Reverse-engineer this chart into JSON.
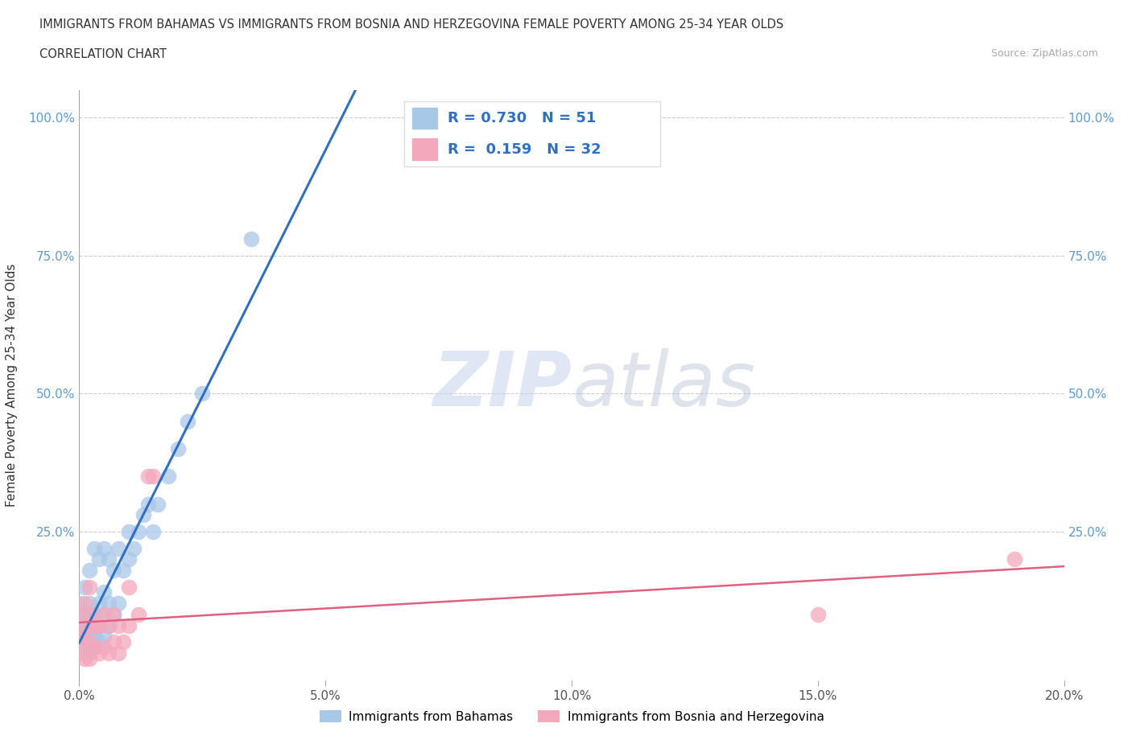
{
  "title_line1": "IMMIGRANTS FROM BAHAMAS VS IMMIGRANTS FROM BOSNIA AND HERZEGOVINA FEMALE POVERTY AMONG 25-34 YEAR OLDS",
  "title_line2": "CORRELATION CHART",
  "source_text": "Source: ZipAtlas.com",
  "ylabel": "Female Poverty Among 25-34 Year Olds",
  "xlim": [
    0.0,
    0.2
  ],
  "ylim": [
    -0.02,
    1.05
  ],
  "xticks": [
    0.0,
    0.05,
    0.1,
    0.15,
    0.2
  ],
  "xticklabels": [
    "0.0%",
    "5.0%",
    "10.0%",
    "15.0%",
    "20.0%"
  ],
  "yticks": [
    0.0,
    0.25,
    0.5,
    0.75,
    1.0
  ],
  "yticklabels": [
    "",
    "25.0%",
    "50.0%",
    "75.0%",
    "100.0%"
  ],
  "watermark_zip": "ZIP",
  "watermark_atlas": "atlas",
  "legend_text1": "R = 0.730   N = 51",
  "legend_text2": "R =  0.159   N = 32",
  "color_bahamas": "#a8c8e8",
  "color_bosnia": "#f4a8bc",
  "color_line_bahamas": "#3070c0",
  "color_line_bosnia": "#e06080",
  "legend_label1": "Immigrants from Bahamas",
  "legend_label2": "Immigrants from Bosnia and Herzegovina",
  "bahamas_x": [
    0.0,
    0.0,
    0.0,
    0.0,
    0.0,
    0.001,
    0.001,
    0.001,
    0.001,
    0.001,
    0.002,
    0.002,
    0.002,
    0.002,
    0.002,
    0.002,
    0.002,
    0.003,
    0.003,
    0.003,
    0.003,
    0.003,
    0.004,
    0.004,
    0.004,
    0.004,
    0.005,
    0.005,
    0.005,
    0.005,
    0.006,
    0.006,
    0.006,
    0.007,
    0.007,
    0.008,
    0.008,
    0.009,
    0.01,
    0.01,
    0.011,
    0.012,
    0.013,
    0.014,
    0.015,
    0.016,
    0.018,
    0.02,
    0.022,
    0.025,
    0.035
  ],
  "bahamas_y": [
    0.05,
    0.08,
    0.08,
    0.1,
    0.12,
    0.04,
    0.06,
    0.08,
    0.1,
    0.15,
    0.03,
    0.05,
    0.07,
    0.08,
    0.1,
    0.12,
    0.18,
    0.04,
    0.06,
    0.08,
    0.1,
    0.22,
    0.05,
    0.08,
    0.12,
    0.2,
    0.06,
    0.1,
    0.14,
    0.22,
    0.08,
    0.12,
    0.2,
    0.1,
    0.18,
    0.12,
    0.22,
    0.18,
    0.2,
    0.25,
    0.22,
    0.25,
    0.28,
    0.3,
    0.25,
    0.3,
    0.35,
    0.4,
    0.45,
    0.5,
    0.78
  ],
  "bosnia_x": [
    0.0,
    0.0,
    0.0,
    0.001,
    0.001,
    0.001,
    0.001,
    0.002,
    0.002,
    0.002,
    0.002,
    0.002,
    0.003,
    0.003,
    0.004,
    0.004,
    0.005,
    0.005,
    0.006,
    0.006,
    0.007,
    0.007,
    0.008,
    0.008,
    0.009,
    0.01,
    0.01,
    0.012,
    0.014,
    0.015,
    0.15,
    0.19
  ],
  "bosnia_y": [
    0.03,
    0.06,
    0.1,
    0.02,
    0.05,
    0.08,
    0.12,
    0.02,
    0.05,
    0.08,
    0.1,
    0.15,
    0.04,
    0.08,
    0.03,
    0.08,
    0.04,
    0.1,
    0.03,
    0.08,
    0.05,
    0.1,
    0.03,
    0.08,
    0.05,
    0.08,
    0.15,
    0.1,
    0.35,
    0.35,
    0.1,
    0.2
  ]
}
